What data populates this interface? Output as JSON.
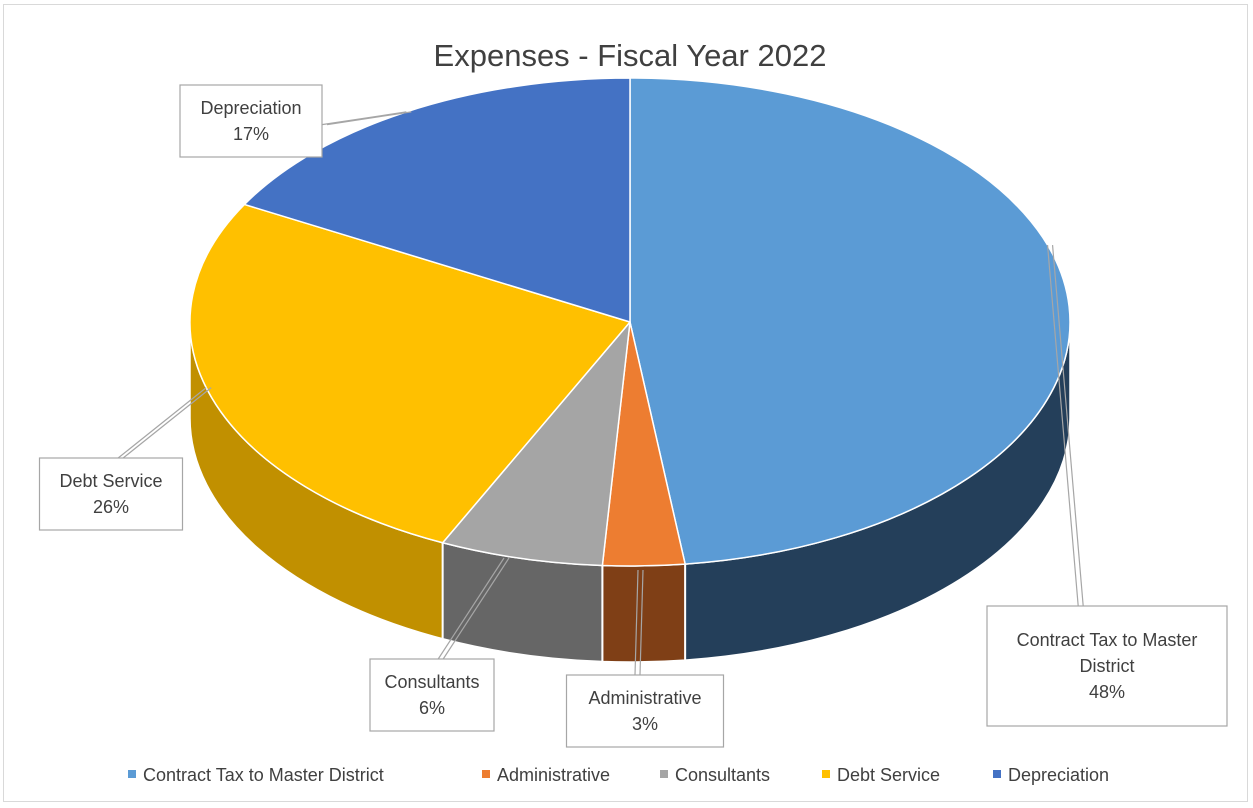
{
  "chart_data": {
    "type": "pie",
    "variant": "3d-exploded-none",
    "title": "Expenses - Fiscal Year 2022",
    "slices": [
      {
        "label": "Contract Tax to Master District",
        "label_lines": [
          "Contract Tax to Master",
          "District"
        ],
        "percent": 48,
        "percent_label": "48%",
        "color": "#5b9bd5",
        "side_color": "#243f5a"
      },
      {
        "label": "Administrative",
        "label_lines": [
          "Administrative"
        ],
        "percent": 3,
        "percent_label": "3%",
        "color": "#ed7d31",
        "side_color": "#7f3f16"
      },
      {
        "label": "Consultants",
        "label_lines": [
          "Consultants"
        ],
        "percent": 6,
        "percent_label": "6%",
        "color": "#a5a5a5",
        "side_color": "#666666"
      },
      {
        "label": "Debt Service",
        "label_lines": [
          "Debt Service"
        ],
        "percent": 26,
        "percent_label": "26%",
        "color": "#ffc000",
        "side_color": "#c19000"
      },
      {
        "label": "Depreciation",
        "label_lines": [
          "Depreciation"
        ],
        "percent": 17,
        "percent_label": "17%",
        "color": "#4472c4",
        "side_color": "#2c4c85"
      }
    ],
    "legend": {
      "placement": "bottom"
    }
  }
}
